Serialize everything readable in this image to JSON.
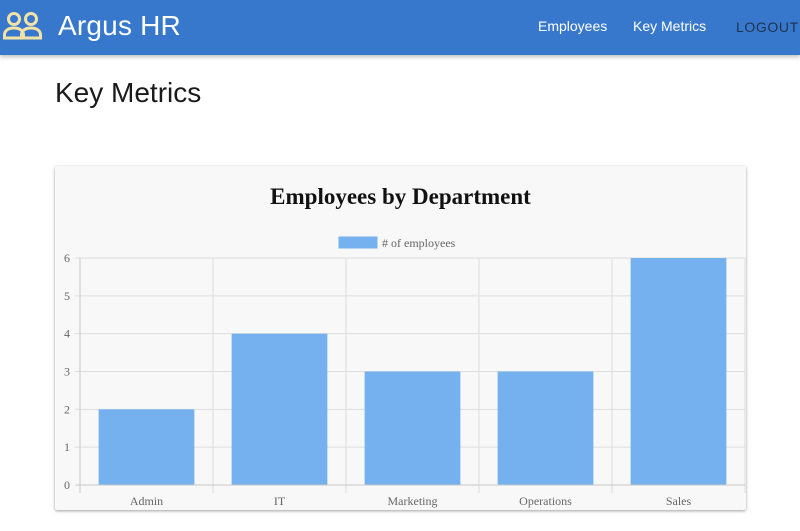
{
  "app": {
    "title": "Argus HR",
    "icon": "people-icon",
    "bar_color": "#3878cc"
  },
  "nav": {
    "employees_label": "Employees",
    "metrics_label": "Key Metrics",
    "logout_label": "LOGOUT"
  },
  "page": {
    "title": "Key Metrics"
  },
  "chart_data": {
    "type": "bar",
    "title": "Employees by Department",
    "categories": [
      "Admin",
      "IT",
      "Marketing",
      "Operations",
      "Sales"
    ],
    "series": [
      {
        "name": "# of employees",
        "values": [
          2,
          4,
          3,
          3,
          6
        ],
        "color": "#76b1ef"
      }
    ],
    "ylim": [
      0,
      6
    ],
    "yticks": [
      0,
      1,
      2,
      3,
      4,
      5,
      6
    ],
    "xlabel": "",
    "ylabel": "",
    "grid": true,
    "legend_position": "top"
  }
}
